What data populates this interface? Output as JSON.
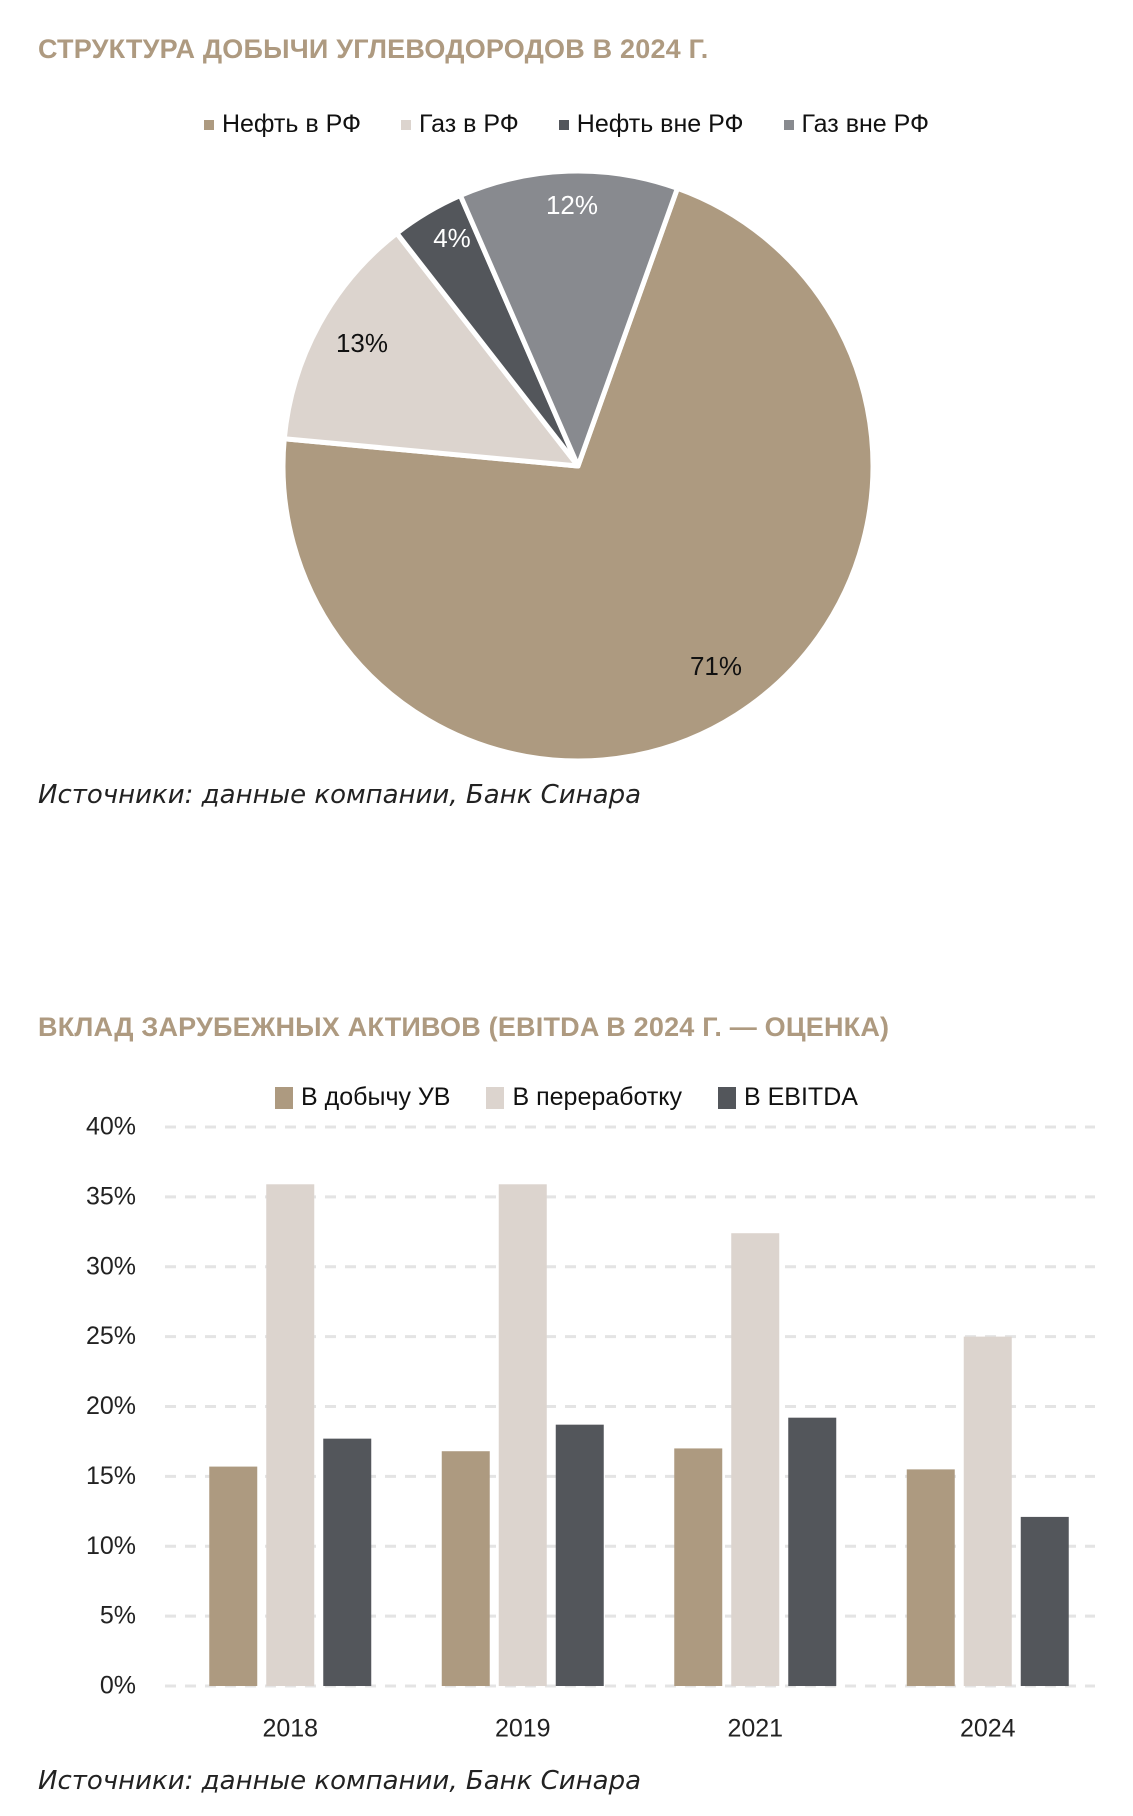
{
  "colors": {
    "title": "#ae9a80",
    "oil_rf": "#ad9a80",
    "gas_rf": "#dcd4ce",
    "oil_ext": "#53565b",
    "gas_ext": "#888a8f",
    "grid": "#e4e4e4"
  },
  "pie_section": {
    "title": "СТРУКТУРА ДОБЫЧИ УГЛЕВОДОРОДОВ В 2024 Г.",
    "source": "Источники: данные компании, Банк Синара",
    "legend": [
      "Нефть в РФ",
      "Газ в РФ",
      "Нефть вне РФ",
      "Газ вне РФ"
    ]
  },
  "bar_section": {
    "title": "ВКЛАД ЗАРУБЕЖНЫХ АКТИВОВ (EBITDA В 2024 Г. — ОЦЕНКА)",
    "source": "Источники: данные компании, Банк Синара",
    "legend": [
      "В добычу УВ",
      "В переработку",
      "В EBITDA"
    ]
  },
  "chart_data": [
    {
      "type": "pie",
      "title": "СТРУКТУРА ДОБЫЧИ УГЛЕВОДОРОДОВ В 2024 Г.",
      "legend_position": "top",
      "slices": [
        {
          "label": "Нефть в РФ",
          "value": 71,
          "display": "71%"
        },
        {
          "label": "Газ в РФ",
          "value": 13,
          "display": "13%"
        },
        {
          "label": "Нефть вне РФ",
          "value": 4,
          "display": "4%"
        },
        {
          "label": "Газ вне РФ",
          "value": 12,
          "display": "12%"
        }
      ],
      "start_angle_deg": 19.7
    },
    {
      "type": "bar",
      "title": "ВКЛАД ЗАРУБЕЖНЫХ АКТИВОВ (EBITDA В 2024 Г. — ОЦЕНКА)",
      "categories": [
        "2018",
        "2019",
        "2021",
        "2024"
      ],
      "series": [
        {
          "name": "В добычу УВ",
          "values": [
            15.7,
            16.8,
            17.0,
            15.5
          ]
        },
        {
          "name": "В переработку",
          "values": [
            35.9,
            35.9,
            32.4,
            25.0
          ]
        },
        {
          "name": "В EBITDA",
          "values": [
            17.7,
            18.7,
            19.2,
            12.1
          ]
        }
      ],
      "xlabel": "",
      "ylabel": "",
      "ylim": [
        0,
        40
      ],
      "yticks": [
        "0%",
        "5%",
        "10%",
        "15%",
        "20%",
        "25%",
        "30%",
        "35%",
        "40%"
      ],
      "grid": true,
      "legend_position": "top"
    }
  ]
}
